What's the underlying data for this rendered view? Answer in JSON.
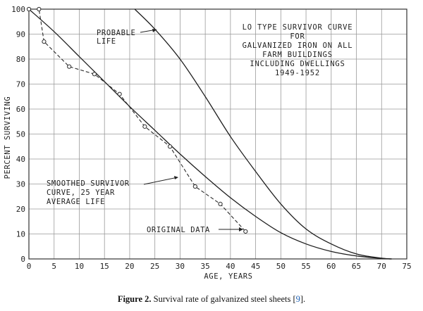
{
  "caption": {
    "label": "Figure 2.",
    "text": " Survival rate of galvanized steel sheets [",
    "ref": "9",
    "end": "]."
  },
  "chart_data": {
    "type": "line",
    "title_lines": [
      "LO TYPE SURVIVOR CURVE",
      "FOR",
      "GALVANIZED IRON ON ALL",
      "FARM BUILDINGS",
      "INCLUDING DWELLINGS",
      "1949-1952"
    ],
    "xlabel": "AGE, YEARS",
    "ylabel": "PERCENT SURVIVING",
    "xlim": [
      0,
      75
    ],
    "ylim": [
      0,
      100
    ],
    "xticks": [
      0,
      5,
      10,
      15,
      20,
      25,
      30,
      35,
      40,
      45,
      50,
      55,
      60,
      65,
      70,
      75
    ],
    "yticks": [
      0,
      10,
      20,
      30,
      40,
      50,
      60,
      70,
      80,
      90,
      100
    ],
    "grid": true,
    "series": [
      {
        "name": "SMOOTHED SURVIVOR CURVE, 25 YEAR AVERAGE LIFE",
        "style": "solid",
        "x": [
          0,
          5,
          10,
          15,
          20,
          25,
          30,
          35,
          40,
          45,
          50,
          55,
          60,
          65,
          70,
          72
        ],
        "y": [
          100,
          91,
          81,
          71,
          61,
          51.5,
          42,
          33,
          24.5,
          17,
          10.5,
          6,
          3,
          1.2,
          0.2,
          0
        ]
      },
      {
        "name": "PROBABLE LIFE",
        "style": "solid",
        "x": [
          21,
          25,
          30,
          35,
          40,
          45,
          50,
          55,
          60,
          65,
          70,
          72
        ],
        "y": [
          100,
          92,
          80,
          65,
          49,
          35,
          22,
          12,
          6,
          2,
          0.3,
          0
        ]
      },
      {
        "name": "ORIGINAL DATA",
        "style": "dashed-markers",
        "x": [
          0,
          2,
          3,
          8,
          13,
          18,
          23,
          28,
          33,
          38,
          43
        ],
        "y": [
          100,
          100,
          87,
          77,
          74,
          66,
          53,
          45,
          29,
          22,
          11
        ]
      }
    ],
    "annotations": {
      "probable_life": [
        "PROBABLE",
        "LIFE"
      ],
      "smoothed": [
        "SMOOTHED SURVIVOR",
        "CURVE, 25 YEAR",
        "AVERAGE LIFE"
      ],
      "original": "ORIGINAL DATA"
    }
  }
}
